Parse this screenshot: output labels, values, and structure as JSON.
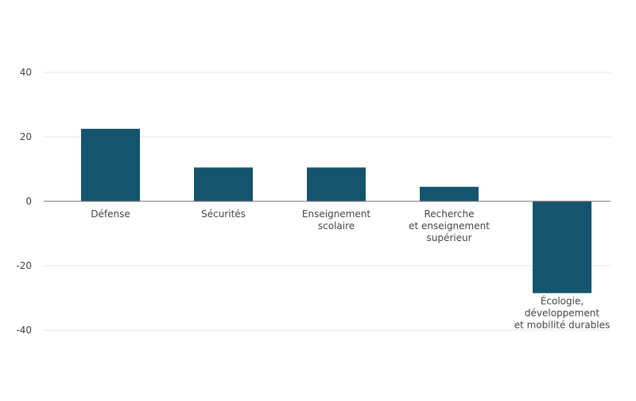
{
  "chart_data": {
    "type": "bar",
    "title": "",
    "xlabel": "",
    "ylabel": "",
    "categories": [
      [
        "Défense"
      ],
      [
        "Sécurités"
      ],
      [
        "Enseignement",
        "scolaire"
      ],
      [
        "Recherche",
        "et enseignement",
        "supérieur"
      ],
      [
        "Écologie,",
        "développement",
        "et mobilité durables"
      ]
    ],
    "values": [
      22.5,
      10.5,
      10.5,
      4.5,
      -28.5
    ],
    "ylim": [
      -40,
      40
    ],
    "yticks": [
      40,
      20,
      0,
      -20,
      -40
    ],
    "grid": true,
    "colors": {
      "bar": "#14546d",
      "grid": "#e6e6e6",
      "axis": "#6e6e6e",
      "text": "#444444"
    }
  }
}
